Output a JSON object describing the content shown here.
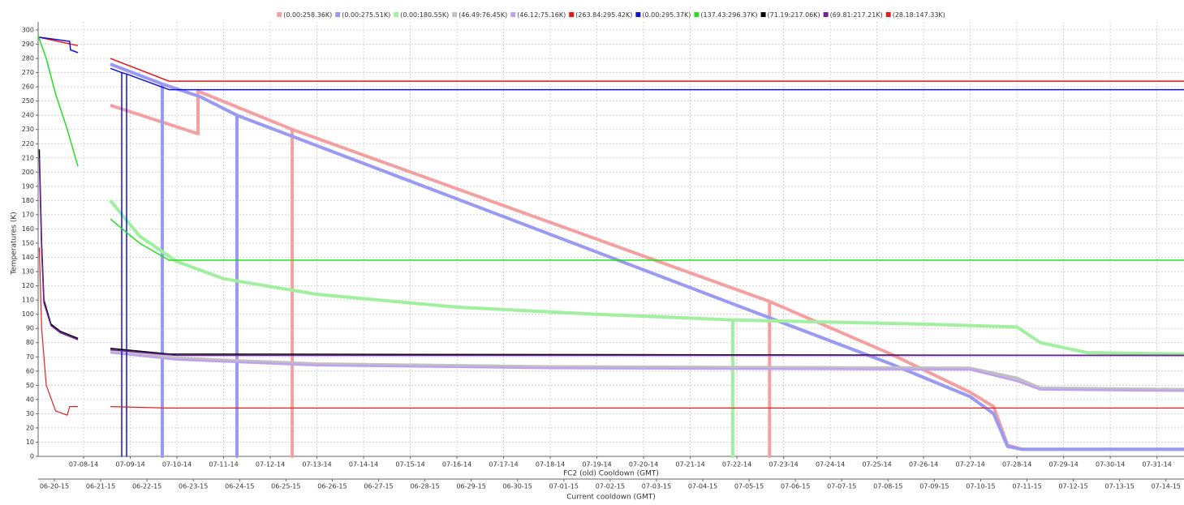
{
  "chart_data": {
    "type": "line",
    "xlabel": "FC2 (old) Cooldown (GMT)",
    "x2label": "Current cooldown (GMT)",
    "ylabel": "Temperatures (K)",
    "grid": true,
    "legend": "top",
    "ylim": [
      0,
      305.7
    ],
    "yticks": [
      0,
      10,
      20,
      30,
      40,
      50,
      60,
      70,
      80,
      90,
      100,
      110,
      120,
      130,
      140,
      150,
      160,
      170,
      180,
      190,
      200,
      210,
      220,
      230,
      240,
      250,
      260,
      270,
      280,
      290,
      300
    ],
    "xlim": [
      -0.974,
      23.58
    ],
    "xticks": [
      {
        "value": 0,
        "label": "07-08-14"
      },
      {
        "value": 1,
        "label": "07-09-14"
      },
      {
        "value": 2,
        "label": "07-10-14"
      },
      {
        "value": 3,
        "label": "07-11-14"
      },
      {
        "value": 4,
        "label": "07-12-14"
      },
      {
        "value": 5,
        "label": "07-13-14"
      },
      {
        "value": 6,
        "label": "07-14-14"
      },
      {
        "value": 7,
        "label": "07-15-14"
      },
      {
        "value": 8,
        "label": "07-16-14"
      },
      {
        "value": 9,
        "label": "07-17-14"
      },
      {
        "value": 10,
        "label": "07-18-14"
      },
      {
        "value": 11,
        "label": "07-19-14"
      },
      {
        "value": 12,
        "label": "07-20-14"
      },
      {
        "value": 13,
        "label": "07-21-14"
      },
      {
        "value": 14,
        "label": "07-22-14"
      },
      {
        "value": 15,
        "label": "07-23-14"
      },
      {
        "value": 16,
        "label": "07-24-14"
      },
      {
        "value": 17,
        "label": "07-25-14"
      },
      {
        "value": 18,
        "label": "07-26-14"
      },
      {
        "value": 19,
        "label": "07-27-14"
      },
      {
        "value": 20,
        "label": "07-28-14"
      },
      {
        "value": 21,
        "label": "07-29-14"
      },
      {
        "value": 22,
        "label": "07-30-14"
      },
      {
        "value": 23,
        "label": "07-31-14"
      }
    ],
    "x2lim": [
      -0.35,
      24.39
    ],
    "x2ticks": [
      {
        "value": 0,
        "label": "06-20-15"
      },
      {
        "value": 1,
        "label": "06-21-15"
      },
      {
        "value": 2,
        "label": "06-22-15"
      },
      {
        "value": 3,
        "label": "06-23-15"
      },
      {
        "value": 4,
        "label": "06-24-15"
      },
      {
        "value": 5,
        "label": "06-25-15"
      },
      {
        "value": 6,
        "label": "06-26-15"
      },
      {
        "value": 7,
        "label": "06-27-15"
      },
      {
        "value": 8,
        "label": "06-28-15"
      },
      {
        "value": 9,
        "label": "06-29-15"
      },
      {
        "value": 10,
        "label": "06-30-15"
      },
      {
        "value": 11,
        "label": "07-01-15"
      },
      {
        "value": 12,
        "label": "07-02-15"
      },
      {
        "value": 13,
        "label": "07-03-15"
      },
      {
        "value": 14,
        "label": "07-04-15"
      },
      {
        "value": 15,
        "label": "07-05-15"
      },
      {
        "value": 16,
        "label": "07-06-15"
      },
      {
        "value": 17,
        "label": "07-07-15"
      },
      {
        "value": 18,
        "label": "07-08-15"
      },
      {
        "value": 19,
        "label": "07-09-15"
      },
      {
        "value": 20,
        "label": "07-10-15"
      },
      {
        "value": 21,
        "label": "07-11-15"
      },
      {
        "value": 22,
        "label": "07-12-15"
      },
      {
        "value": 23,
        "label": "07-13-15"
      },
      {
        "value": 24,
        "label": "07-14-15"
      }
    ],
    "series": [
      {
        "name": "(0.00:258.36K)",
        "color": "#f4a0a0",
        "line_width": 4,
        "x": [
          0.574,
          2.452,
          2.452,
          4.47,
          4.47,
          4.47,
          14.7,
          14.7,
          14.7,
          17.3,
          19.0,
          19.5,
          19.8,
          20.1,
          23.58
        ],
        "values": [
          247,
          227,
          257,
          230,
          0,
          230,
          109,
          0,
          109,
          72,
          45,
          35,
          8,
          5,
          5
        ]
      },
      {
        "name": "(0.00:275.51K)",
        "color": "#9a9af4",
        "line_width": 4,
        "x": [
          0.574,
          1.687,
          1.687,
          1.687,
          2.5,
          3.287,
          3.287,
          3.287,
          17.3,
          19.0,
          19.5,
          19.8,
          20.1,
          23.58
        ],
        "values": [
          276,
          262,
          0,
          262,
          253,
          240,
          0,
          240,
          65,
          42,
          30,
          7,
          5,
          5
        ]
      },
      {
        "name": "(0.00:180.55K)",
        "color": "#a0f0a0",
        "line_width": 4,
        "x": [
          0.574,
          1.2,
          2,
          3,
          5,
          8,
          11,
          13.91,
          13.91,
          13.91,
          18,
          20,
          20.5,
          21.5,
          23.58
        ],
        "values": [
          180,
          155,
          137,
          125,
          114,
          105,
          100,
          96,
          0,
          96,
          93,
          91,
          80,
          73,
          72
        ]
      },
      {
        "name": "(46.49:76.45K)",
        "color": "#c0c0c0",
        "line_width": 4,
        "x": [
          0.574,
          2,
          5,
          10,
          19,
          20,
          20.5,
          23.58
        ],
        "values": [
          75,
          69,
          65,
          63,
          62,
          55,
          48,
          47
        ]
      },
      {
        "name": "(46.12:75.16K)",
        "color": "#c0a0f0",
        "line_width": 2.5,
        "x": [
          0.574,
          2,
          5,
          10,
          19,
          20,
          20.5,
          23.58
        ],
        "values": [
          73,
          68,
          64,
          62,
          61,
          53,
          47,
          46
        ]
      },
      {
        "name": "(263.84:295.42K)",
        "color": "#f01010",
        "line_width": 1.5,
        "x": [
          -0.974,
          -0.12,
          null,
          0.574,
          1.826,
          23.58
        ],
        "values": [
          295,
          289,
          null,
          280,
          264,
          264
        ]
      },
      {
        "name": "(0.00:295.37K)",
        "color": "#1010e0",
        "line_width": 1.5,
        "x": [
          -0.974,
          -0.3,
          -0.28,
          -0.12,
          null,
          0.574,
          0.817,
          0.817,
          0.817,
          0.922,
          0.922,
          0.922,
          1.83,
          23.58
        ],
        "values": [
          295,
          292,
          286,
          284,
          null,
          273,
          270,
          0,
          270,
          269,
          0,
          269,
          258,
          258
        ]
      },
      {
        "name": "(137.43:296.37K)",
        "color": "#20e020",
        "line_width": 1.5,
        "x": [
          -0.974,
          -0.8,
          -0.6,
          -0.35,
          -0.12,
          null,
          0.574,
          1.2,
          1.83,
          23.58
        ],
        "values": [
          296,
          280,
          255,
          230,
          204,
          null,
          167,
          150,
          138,
          138
        ]
      },
      {
        "name": "(71.19:217.06K)",
        "color": "#000000",
        "line_width": 1.5,
        "x": [
          -0.95,
          -0.9,
          -0.85,
          -0.7,
          -0.5,
          -0.12,
          null,
          0.574,
          1.83,
          23.58
        ],
        "values": [
          216,
          150,
          110,
          93,
          88,
          83,
          null,
          76,
          72,
          71
        ]
      },
      {
        "name": "(69.81:217.21K)",
        "color": "#7020a0",
        "line_width": 1.5,
        "x": [
          -0.95,
          -0.9,
          -0.85,
          -0.7,
          -0.5,
          -0.12,
          null,
          0.574,
          2,
          23.58
        ],
        "values": [
          210,
          145,
          108,
          92,
          87,
          82,
          null,
          75,
          71,
          71
        ]
      },
      {
        "name": "(28.18:147.33K)",
        "color": "#e02020",
        "line_width": 1.2,
        "x": [
          -0.95,
          -0.9,
          -0.8,
          -0.6,
          -0.35,
          -0.3,
          -0.12,
          null,
          0.574,
          1.8,
          23.58
        ],
        "values": [
          147,
          90,
          50,
          32,
          29,
          35,
          35,
          null,
          35,
          34,
          34
        ]
      }
    ]
  }
}
